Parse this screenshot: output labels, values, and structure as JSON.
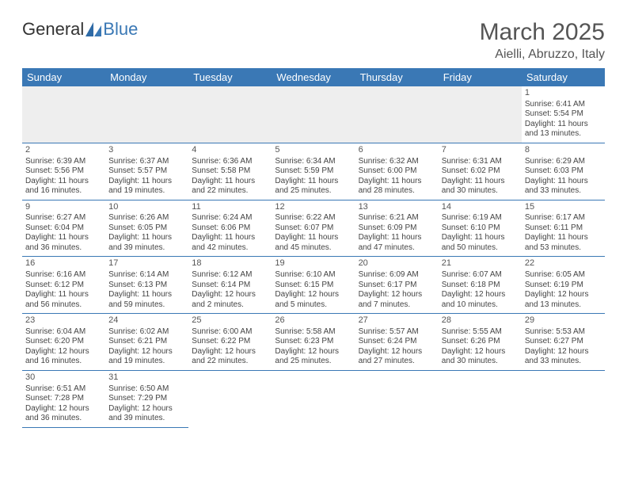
{
  "logo": {
    "part1": "General",
    "part2": "Blue"
  },
  "title": "March 2025",
  "location": "Aielli, Abruzzo, Italy",
  "colors": {
    "header_bg": "#3a78b5",
    "header_text": "#ffffff",
    "rule": "#3a78b5",
    "blank_bg": "#eeeeee",
    "text": "#444444",
    "title_text": "#555555"
  },
  "fonts": {
    "title_size": 30,
    "location_size": 16,
    "th_size": 13,
    "cell_size": 10
  },
  "day_headers": [
    "Sunday",
    "Monday",
    "Tuesday",
    "Wednesday",
    "Thursday",
    "Friday",
    "Saturday"
  ],
  "weeks": [
    [
      null,
      null,
      null,
      null,
      null,
      null,
      {
        "d": "1",
        "sr": "Sunrise: 6:41 AM",
        "ss": "Sunset: 5:54 PM",
        "dl1": "Daylight: 11 hours",
        "dl2": "and 13 minutes."
      }
    ],
    [
      {
        "d": "2",
        "sr": "Sunrise: 6:39 AM",
        "ss": "Sunset: 5:56 PM",
        "dl1": "Daylight: 11 hours",
        "dl2": "and 16 minutes."
      },
      {
        "d": "3",
        "sr": "Sunrise: 6:37 AM",
        "ss": "Sunset: 5:57 PM",
        "dl1": "Daylight: 11 hours",
        "dl2": "and 19 minutes."
      },
      {
        "d": "4",
        "sr": "Sunrise: 6:36 AM",
        "ss": "Sunset: 5:58 PM",
        "dl1": "Daylight: 11 hours",
        "dl2": "and 22 minutes."
      },
      {
        "d": "5",
        "sr": "Sunrise: 6:34 AM",
        "ss": "Sunset: 5:59 PM",
        "dl1": "Daylight: 11 hours",
        "dl2": "and 25 minutes."
      },
      {
        "d": "6",
        "sr": "Sunrise: 6:32 AM",
        "ss": "Sunset: 6:00 PM",
        "dl1": "Daylight: 11 hours",
        "dl2": "and 28 minutes."
      },
      {
        "d": "7",
        "sr": "Sunrise: 6:31 AM",
        "ss": "Sunset: 6:02 PM",
        "dl1": "Daylight: 11 hours",
        "dl2": "and 30 minutes."
      },
      {
        "d": "8",
        "sr": "Sunrise: 6:29 AM",
        "ss": "Sunset: 6:03 PM",
        "dl1": "Daylight: 11 hours",
        "dl2": "and 33 minutes."
      }
    ],
    [
      {
        "d": "9",
        "sr": "Sunrise: 6:27 AM",
        "ss": "Sunset: 6:04 PM",
        "dl1": "Daylight: 11 hours",
        "dl2": "and 36 minutes."
      },
      {
        "d": "10",
        "sr": "Sunrise: 6:26 AM",
        "ss": "Sunset: 6:05 PM",
        "dl1": "Daylight: 11 hours",
        "dl2": "and 39 minutes."
      },
      {
        "d": "11",
        "sr": "Sunrise: 6:24 AM",
        "ss": "Sunset: 6:06 PM",
        "dl1": "Daylight: 11 hours",
        "dl2": "and 42 minutes."
      },
      {
        "d": "12",
        "sr": "Sunrise: 6:22 AM",
        "ss": "Sunset: 6:07 PM",
        "dl1": "Daylight: 11 hours",
        "dl2": "and 45 minutes."
      },
      {
        "d": "13",
        "sr": "Sunrise: 6:21 AM",
        "ss": "Sunset: 6:09 PM",
        "dl1": "Daylight: 11 hours",
        "dl2": "and 47 minutes."
      },
      {
        "d": "14",
        "sr": "Sunrise: 6:19 AM",
        "ss": "Sunset: 6:10 PM",
        "dl1": "Daylight: 11 hours",
        "dl2": "and 50 minutes."
      },
      {
        "d": "15",
        "sr": "Sunrise: 6:17 AM",
        "ss": "Sunset: 6:11 PM",
        "dl1": "Daylight: 11 hours",
        "dl2": "and 53 minutes."
      }
    ],
    [
      {
        "d": "16",
        "sr": "Sunrise: 6:16 AM",
        "ss": "Sunset: 6:12 PM",
        "dl1": "Daylight: 11 hours",
        "dl2": "and 56 minutes."
      },
      {
        "d": "17",
        "sr": "Sunrise: 6:14 AM",
        "ss": "Sunset: 6:13 PM",
        "dl1": "Daylight: 11 hours",
        "dl2": "and 59 minutes."
      },
      {
        "d": "18",
        "sr": "Sunrise: 6:12 AM",
        "ss": "Sunset: 6:14 PM",
        "dl1": "Daylight: 12 hours",
        "dl2": "and 2 minutes."
      },
      {
        "d": "19",
        "sr": "Sunrise: 6:10 AM",
        "ss": "Sunset: 6:15 PM",
        "dl1": "Daylight: 12 hours",
        "dl2": "and 5 minutes."
      },
      {
        "d": "20",
        "sr": "Sunrise: 6:09 AM",
        "ss": "Sunset: 6:17 PM",
        "dl1": "Daylight: 12 hours",
        "dl2": "and 7 minutes."
      },
      {
        "d": "21",
        "sr": "Sunrise: 6:07 AM",
        "ss": "Sunset: 6:18 PM",
        "dl1": "Daylight: 12 hours",
        "dl2": "and 10 minutes."
      },
      {
        "d": "22",
        "sr": "Sunrise: 6:05 AM",
        "ss": "Sunset: 6:19 PM",
        "dl1": "Daylight: 12 hours",
        "dl2": "and 13 minutes."
      }
    ],
    [
      {
        "d": "23",
        "sr": "Sunrise: 6:04 AM",
        "ss": "Sunset: 6:20 PM",
        "dl1": "Daylight: 12 hours",
        "dl2": "and 16 minutes."
      },
      {
        "d": "24",
        "sr": "Sunrise: 6:02 AM",
        "ss": "Sunset: 6:21 PM",
        "dl1": "Daylight: 12 hours",
        "dl2": "and 19 minutes."
      },
      {
        "d": "25",
        "sr": "Sunrise: 6:00 AM",
        "ss": "Sunset: 6:22 PM",
        "dl1": "Daylight: 12 hours",
        "dl2": "and 22 minutes."
      },
      {
        "d": "26",
        "sr": "Sunrise: 5:58 AM",
        "ss": "Sunset: 6:23 PM",
        "dl1": "Daylight: 12 hours",
        "dl2": "and 25 minutes."
      },
      {
        "d": "27",
        "sr": "Sunrise: 5:57 AM",
        "ss": "Sunset: 6:24 PM",
        "dl1": "Daylight: 12 hours",
        "dl2": "and 27 minutes."
      },
      {
        "d": "28",
        "sr": "Sunrise: 5:55 AM",
        "ss": "Sunset: 6:26 PM",
        "dl1": "Daylight: 12 hours",
        "dl2": "and 30 minutes."
      },
      {
        "d": "29",
        "sr": "Sunrise: 5:53 AM",
        "ss": "Sunset: 6:27 PM",
        "dl1": "Daylight: 12 hours",
        "dl2": "and 33 minutes."
      }
    ],
    [
      {
        "d": "30",
        "sr": "Sunrise: 6:51 AM",
        "ss": "Sunset: 7:28 PM",
        "dl1": "Daylight: 12 hours",
        "dl2": "and 36 minutes."
      },
      {
        "d": "31",
        "sr": "Sunrise: 6:50 AM",
        "ss": "Sunset: 7:29 PM",
        "dl1": "Daylight: 12 hours",
        "dl2": "and 39 minutes."
      },
      null,
      null,
      null,
      null,
      null
    ]
  ]
}
